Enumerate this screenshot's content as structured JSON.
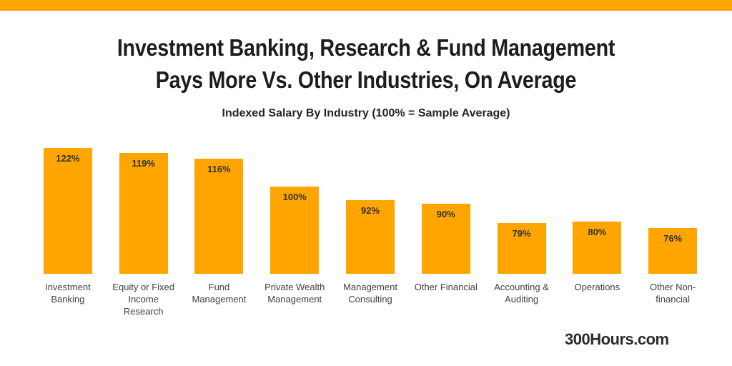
{
  "page": {
    "background_color": "#ffffff",
    "accent_color": "#ffa500",
    "watermark": "300Hours.com"
  },
  "header": {
    "title": "Investment Banking, Research & Fund Management\nPays More Vs. Other Industries, On Average",
    "subtitle": "Indexed Salary By Industry (100% = Sample Average)"
  },
  "chart_data": {
    "type": "bar",
    "title": "Investment Banking, Research & Fund Management Pays More Vs. Other Industries, On Average",
    "subtitle": "Indexed Salary By Industry (100% = Sample Average)",
    "categories": [
      "Investment Banking",
      "Equity or Fixed Income Research",
      "Fund Management",
      "Private Wealth Management",
      "Management Consulting",
      "Other Financial",
      "Accounting & Auditing",
      "Operations",
      "Other Non-financial"
    ],
    "categories_display": [
      "Investment\nBanking",
      "Equity or Fixed\nIncome\nResearch",
      "Fund\nManagement",
      "Private Wealth\nManagement",
      "Management\nConsulting",
      "Other Financial",
      "Accounting &\nAuditing",
      "Operations",
      "Other Non-\nfinancial"
    ],
    "values": [
      122,
      119,
      116,
      100,
      92,
      90,
      79,
      80,
      76
    ],
    "value_labels": [
      "122%",
      "119%",
      "116%",
      "100%",
      "92%",
      "90%",
      "79%",
      "80%",
      "76%"
    ],
    "unit": "%",
    "bar_color": "#ffa500",
    "value_label_color": "#333333",
    "category_label_color": "#3f3f3f",
    "ylim": [
      50,
      130
    ],
    "grid": false,
    "legend": "none",
    "xlabel": "",
    "ylabel": ""
  }
}
